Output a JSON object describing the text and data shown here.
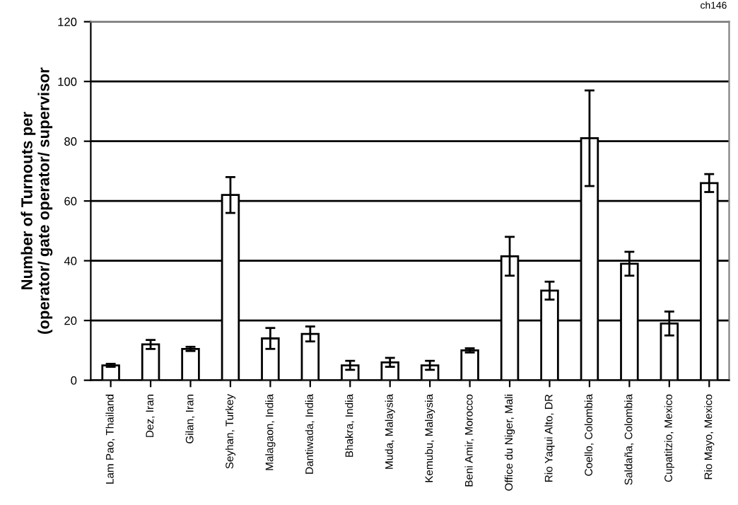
{
  "chart_data": {
    "type": "bar",
    "ylabel": "Number of Turnouts per\n(operator/ gate operator/ supervisor",
    "annotations": [
      "ch146"
    ],
    "categories": [
      "Lam Pao, Thailand",
      "Dez, Iran",
      "Gilan, Iran",
      "Seyhan, Turkey",
      "Malagaon, India",
      "Dantiwada, India",
      "Bhakra, India",
      "Muda, Malaysia",
      "Kemubu, Malaysia",
      "Beni Amir, Morocco",
      "Office du Niger, Mali",
      "Rio Yaqui Alto, DR",
      "Coello, Colombia",
      "Saldaña, Colombia",
      "Cupatitzio, Mexico",
      "Rio Mayo, Mexico"
    ],
    "values": [
      5,
      12,
      10.5,
      62,
      14,
      15.5,
      5,
      6,
      5,
      10,
      41.5,
      30,
      81,
      39,
      19,
      66
    ],
    "errors": [
      0.5,
      1.5,
      0.7,
      6,
      3.5,
      2.5,
      1.5,
      1.5,
      1.5,
      0.7,
      6.5,
      3,
      16,
      4,
      4,
      3
    ],
    "color": "#ffffff",
    "ylim": [
      0,
      120
    ],
    "yticks": [
      0,
      20,
      40,
      60,
      80,
      100,
      120
    ],
    "grid": "y"
  }
}
